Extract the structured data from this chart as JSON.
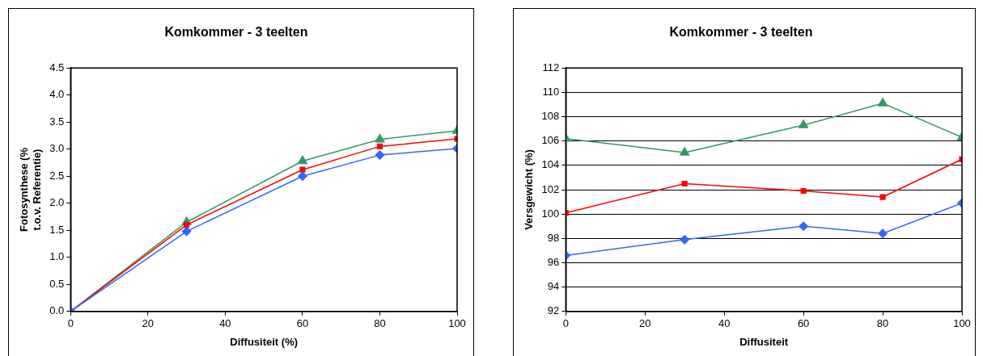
{
  "chart_data": [
    {
      "type": "line",
      "title": "Komkommer - 3 teelten",
      "xlabel": "Diffusiteit (%)",
      "ylabel": "Fotosynthese (% t.o.v. Referentie)",
      "x": [
        0,
        30,
        60,
        80,
        100
      ],
      "xlim": [
        0,
        100
      ],
      "xticks": [
        0,
        20,
        40,
        60,
        80,
        100
      ],
      "ylim": [
        0,
        4.5
      ],
      "yticks": [
        {
          "value": 0,
          "label": "0.0"
        },
        {
          "value": 0.5,
          "label": "0.5"
        },
        {
          "value": 1,
          "label": "1.0"
        },
        {
          "value": 1.5,
          "label": "1.5"
        },
        {
          "value": 2,
          "label": "2.0"
        },
        {
          "value": 2.5,
          "label": "2.5"
        },
        {
          "value": 3,
          "label": "3.0"
        },
        {
          "value": 3.5,
          "label": "3.5"
        },
        {
          "value": 4,
          "label": "4.0"
        },
        {
          "value": 4.5,
          "label": "4.5"
        }
      ],
      "grid": false,
      "legend": false,
      "series": [
        {
          "color": "#3366ff",
          "marker": "diamond",
          "values": [
            0,
            1.48,
            2.5,
            2.89,
            3.01
          ]
        },
        {
          "color": "#ff0000",
          "marker": "square",
          "values": [
            0,
            1.6,
            2.62,
            3.05,
            3.19
          ]
        },
        {
          "color": "#339966",
          "marker": "triangle",
          "values": [
            0,
            1.65,
            2.78,
            3.18,
            3.34
          ]
        }
      ]
    },
    {
      "type": "line",
      "title": "Komkommer - 3 teelten",
      "xlabel": "Diffusiteit",
      "ylabel": "Versgewicht (%)",
      "x": [
        0,
        30,
        60,
        80,
        100
      ],
      "xlim": [
        0,
        100
      ],
      "xticks": [
        0,
        20,
        40,
        60,
        80,
        100
      ],
      "ylim": [
        92,
        112
      ],
      "yticks": [
        92,
        94,
        96,
        98,
        100,
        102,
        104,
        106,
        108,
        110,
        112
      ],
      "grid": "y",
      "legend": false,
      "series": [
        {
          "color": "#3366ff",
          "marker": "diamond",
          "values": [
            96.6,
            97.9,
            99.0,
            98.4,
            100.9
          ]
        },
        {
          "color": "#ff0000",
          "marker": "square",
          "values": [
            100.1,
            102.5,
            101.9,
            101.4,
            104.5
          ]
        },
        {
          "color": "#339966",
          "marker": "triangle",
          "values": [
            106.2,
            105.05,
            107.3,
            109.1,
            106.3
          ]
        }
      ]
    }
  ]
}
